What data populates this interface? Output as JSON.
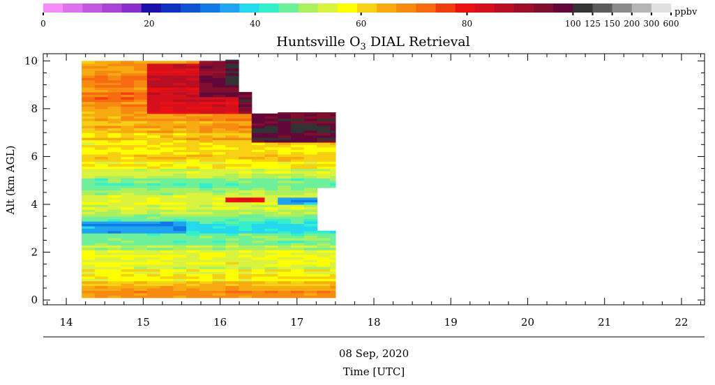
{
  "colorbar": {
    "colors": [
      "#f78ef7",
      "#dc72ec",
      "#c25ae0",
      "#a944d6",
      "#8a2dca",
      "#1a0fa6",
      "#0e2fbf",
      "#0f52d2",
      "#1279e4",
      "#1ea3f0",
      "#24d9ee",
      "#33f0cc",
      "#6ef09a",
      "#aaf05f",
      "#d9f33f",
      "#ffff00",
      "#f7cf13",
      "#f7ab10",
      "#f78a10",
      "#f76a10",
      "#f13c10",
      "#ec0f10",
      "#d50f1c",
      "#b60f23",
      "#9c0f28",
      "#800f2e",
      "#62073a",
      "#333333",
      "#5b5b5b",
      "#8a8a8a",
      "#b5b5b5",
      "#e0e0e0"
    ],
    "tick_labels": [
      "0",
      "20",
      "40",
      "60",
      "80",
      "100",
      "125",
      "150",
      "200",
      "300",
      "600"
    ],
    "unit": "ppbv"
  },
  "chart_data": {
    "type": "heatmap",
    "title_main": "Huntsville O",
    "title_sub": "3",
    "title_rest": " DIAL Retrieval",
    "ylabel": "Alt (km AGL)",
    "xlabel_date": "08 Sep, 2020",
    "xlabel": "Time [UTC]",
    "xlim": [
      13.7,
      22.3
    ],
    "ylim": [
      -0.2,
      10.3
    ],
    "x_ticks": [
      14,
      15,
      16,
      17,
      18,
      19,
      20,
      21,
      22
    ],
    "y_ticks": [
      0,
      2,
      4,
      6,
      8,
      10
    ],
    "data_time_range": [
      14.2,
      17.5
    ],
    "data_alt_range": [
      0.1,
      10.0
    ],
    "cell_width_h": 0.17,
    "cell_height_km": 0.1,
    "profile_tops_km": [
      {
        "t0": 14.2,
        "t1": 16.0,
        "top": 10.0
      },
      {
        "t0": 16.0,
        "t1": 16.17,
        "top": 10.05
      },
      {
        "t0": 16.17,
        "t1": 16.47,
        "top": 8.7
      },
      {
        "t0": 16.47,
        "t1": 16.83,
        "top": 7.8
      },
      {
        "t0": 16.83,
        "t1": 17.0,
        "top": 7.85
      },
      {
        "t0": 17.0,
        "t1": 17.5,
        "top": 7.85
      }
    ],
    "gap_regions": [
      {
        "t0": 17.33,
        "t1": 17.5,
        "alt0": 2.9,
        "alt1": 4.7
      }
    ],
    "typical_profile": [
      {
        "alt": 0.1,
        "ppbv": 70
      },
      {
        "alt": 0.5,
        "ppbv": 65
      },
      {
        "alt": 1.0,
        "ppbv": 57
      },
      {
        "alt": 1.5,
        "ppbv": 55
      },
      {
        "alt": 2.0,
        "ppbv": 53
      },
      {
        "alt": 2.5,
        "ppbv": 48
      },
      {
        "alt": 3.0,
        "ppbv": 40
      },
      {
        "alt": 3.5,
        "ppbv": 48
      },
      {
        "alt": 4.0,
        "ppbv": 56
      },
      {
        "alt": 4.5,
        "ppbv": 52
      },
      {
        "alt": 5.0,
        "ppbv": 46
      },
      {
        "alt": 5.5,
        "ppbv": 56
      },
      {
        "alt": 6.0,
        "ppbv": 61
      },
      {
        "alt": 6.5,
        "ppbv": 59
      },
      {
        "alt": 7.0,
        "ppbv": 60
      },
      {
        "alt": 7.5,
        "ppbv": 64
      },
      {
        "alt": 8.0,
        "ppbv": 68
      },
      {
        "alt": 8.5,
        "ppbv": 70
      },
      {
        "alt": 9.0,
        "ppbv": 67
      },
      {
        "alt": 9.5,
        "ppbv": 67
      },
      {
        "alt": 10.0,
        "ppbv": 66
      }
    ],
    "features": [
      {
        "t0": 15.0,
        "t1": 16.17,
        "alt0": 7.8,
        "alt1": 9.9,
        "ppbv": 84,
        "note": "elevated ozone layer"
      },
      {
        "t0": 15.8,
        "t1": 16.17,
        "alt0": 8.5,
        "alt1": 10.0,
        "ppbv": 95
      },
      {
        "t0": 16.0,
        "t1": 16.17,
        "alt0": 9.0,
        "alt1": 10.05,
        "ppbv": 101
      },
      {
        "t0": 16.17,
        "t1": 16.47,
        "alt0": 7.8,
        "alt1": 8.7,
        "ppbv": 97
      },
      {
        "t0": 16.47,
        "t1": 17.5,
        "alt0": 6.6,
        "alt1": 7.85,
        "ppbv": 98
      },
      {
        "t0": 17.0,
        "t1": 17.2,
        "alt0": 7.1,
        "alt1": 7.4,
        "ppbv": 120
      },
      {
        "t0": 16.0,
        "t1": 16.5,
        "alt0": 4.1,
        "alt1": 4.35,
        "ppbv": 80
      },
      {
        "t0": 16.8,
        "t1": 17.2,
        "alt0": 4.05,
        "alt1": 4.3,
        "ppbv": 36
      },
      {
        "t0": 14.2,
        "t1": 15.5,
        "alt0": 2.8,
        "alt1": 3.3,
        "ppbv": 36
      },
      {
        "t0": 14.2,
        "t1": 17.5,
        "alt0": 0.1,
        "alt1": 0.35,
        "ppbv": 70
      }
    ]
  }
}
